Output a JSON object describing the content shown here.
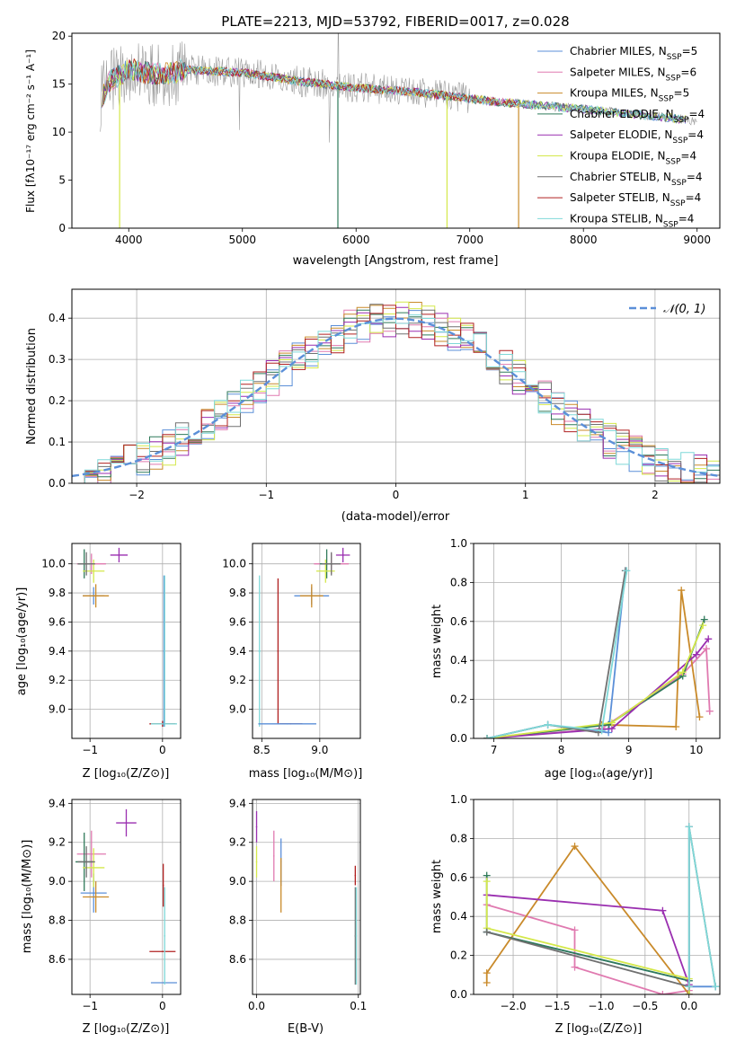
{
  "colors": {
    "chabrier_miles": "#5b8fd8",
    "salpeter_miles": "#e07ab0",
    "kroupa_miles": "#c98a2a",
    "chabrier_elodie": "#2f7a5a",
    "salpeter_elodie": "#9a2fb0",
    "kroupa_elodie": "#d4e84a",
    "chabrier_stelib": "#707070",
    "salpeter_stelib": "#b02020",
    "kroupa_stelib": "#7fd8d8",
    "gaussian": "#5b8fd8"
  },
  "chart_data": [
    {
      "id": "spectrum",
      "type": "line",
      "title": "PLATE=2213, MJD=53792, FIBERID=0017, z=0.028",
      "xlabel": "wavelength [Angstrom, rest frame]",
      "ylabel": "Flux [fλ10⁻¹⁷ erg cm⁻² s⁻¹ A⁻¹]",
      "xlim": [
        3500,
        9200
      ],
      "ylim": [
        0,
        20.3
      ],
      "xticks": [
        4000,
        5000,
        6000,
        7000,
        8000,
        9000
      ],
      "yticks": [
        0,
        5,
        10,
        15,
        20
      ],
      "grid": false,
      "legend_position": "top-right",
      "legend": [
        {
          "label": "Chabrier MILES, N_SSP=5",
          "color_key": "chabrier_miles"
        },
        {
          "label": "Salpeter MILES, N_SSP=6",
          "color_key": "salpeter_miles"
        },
        {
          "label": "Kroupa MILES, N_SSP=5",
          "color_key": "kroupa_miles"
        },
        {
          "label": "Chabrier ELODIE, N_SSP=4",
          "color_key": "chabrier_elodie"
        },
        {
          "label": "Salpeter ELODIE, N_SSP=4",
          "color_key": "salpeter_elodie"
        },
        {
          "label": "Kroupa ELODIE, N_SSP=4",
          "color_key": "kroupa_elodie"
        },
        {
          "label": "Chabrier STELIB, N_SSP=4",
          "color_key": "chabrier_stelib"
        },
        {
          "label": "Salpeter STELIB, N_SSP=4",
          "color_key": "salpeter_stelib"
        },
        {
          "label": "Kroupa STELIB, N_SSP=4",
          "color_key": "kroupa_stelib"
        }
      ],
      "continuum": [
        [
          3750,
          13.5
        ],
        [
          3850,
          15.5
        ],
        [
          4000,
          16.5
        ],
        [
          4300,
          16.0
        ],
        [
          4500,
          16.5
        ],
        [
          5000,
          16.2
        ],
        [
          5500,
          15.3
        ],
        [
          6000,
          14.6
        ],
        [
          6500,
          14.2
        ],
        [
          7000,
          13.5
        ],
        [
          7200,
          13.2
        ],
        [
          7500,
          12.9
        ],
        [
          8000,
          12.4
        ],
        [
          8500,
          11.8
        ],
        [
          9000,
          11.2
        ]
      ],
      "drops": [
        {
          "x": 3920,
          "y": 0,
          "series": "kroupa_elodie"
        },
        {
          "x": 5840,
          "y": 0,
          "series": "chabrier_elodie"
        },
        {
          "x": 6800,
          "y": 0,
          "series": "kroupa_elodie"
        },
        {
          "x": 7430,
          "y": 0,
          "series": "kroupa_miles"
        }
      ]
    },
    {
      "id": "residuals",
      "type": "histogram",
      "xlabel": "(data-model)/error",
      "ylabel": "Normed distribution",
      "xlim": [
        -2.5,
        2.5
      ],
      "ylim": [
        0,
        0.47
      ],
      "xticks": [
        -2,
        -1,
        0,
        1,
        2
      ],
      "yticks": [
        0.0,
        0.1,
        0.2,
        0.3,
        0.4
      ],
      "grid": true,
      "legend_position": "top-right",
      "gaussian_label": "𝒩(0, 1)",
      "bin_width": 0.1,
      "series_count": 9
    },
    {
      "id": "age-vs-Z",
      "type": "scatter",
      "xlabel": "Z [log₁₀(Z/Z⊙)]",
      "ylabel": "age  [log₁₀(age/yr)]",
      "xlim": [
        -1.25,
        0.25
      ],
      "ylim": [
        8.8,
        10.14
      ],
      "xticks": [
        -1,
        0
      ],
      "yticks": [
        9.0,
        9.2,
        9.4,
        9.6,
        9.8,
        10.0
      ],
      "grid": true,
      "points": [
        {
          "series": "chabrier_miles",
          "x": -0.95,
          "y": 9.78,
          "xerr": 0.15,
          "yerr": 0.06
        },
        {
          "series": "salpeter_miles",
          "x": -0.98,
          "y": 10.0,
          "xerr": 0.2,
          "yerr": 0.07
        },
        {
          "series": "kroupa_miles",
          "x": -0.92,
          "y": 9.78,
          "xerr": 0.18,
          "yerr": 0.08
        },
        {
          "series": "chabrier_elodie",
          "x": -1.08,
          "y": 10.0,
          "xerr": 0.08,
          "yerr": 0.1
        },
        {
          "series": "salpeter_elodie",
          "x": -0.6,
          "y": 10.06,
          "xerr": 0.12,
          "yerr": 0.05
        },
        {
          "series": "kroupa_elodie",
          "x": -0.95,
          "y": 9.95,
          "xerr": 0.15,
          "yerr": 0.08
        },
        {
          "series": "chabrier_stelib",
          "x": -1.05,
          "y": 10.0,
          "xerr": 0.12,
          "yerr": 0.08
        },
        {
          "series": "salpeter_stelib",
          "x": 0.0,
          "y": 8.9,
          "xerr": 0.18,
          "yerr": 0.02
        },
        {
          "series": "kroupa_stelib",
          "x": 0.02,
          "y": 8.9,
          "xerr": 0.18,
          "yerr": 0.02
        },
        {
          "series": "chabrier_miles",
          "x": 0.02,
          "y": 9.4,
          "xerr": 0.01,
          "yerr": 0.52
        },
        {
          "series": "kroupa_stelib",
          "x": 0.03,
          "y": 9.4,
          "xerr": 0.01,
          "yerr": 0.52
        }
      ]
    },
    {
      "id": "age-vs-mass",
      "type": "scatter",
      "xlabel": "mass [log₁₀(M/M⊙)]",
      "ylabel": "",
      "xlim": [
        8.42,
        9.35
      ],
      "ylim": [
        8.8,
        10.14
      ],
      "xticks": [
        8.5,
        9.0
      ],
      "yticks": [
        9.0,
        9.2,
        9.4,
        9.6,
        9.8,
        10.0
      ],
      "grid": true,
      "points": [
        {
          "series": "chabrier_miles",
          "x": 8.93,
          "y": 9.78,
          "xerr": 0.15,
          "yerr": 0.06
        },
        {
          "series": "salpeter_miles",
          "x": 9.1,
          "y": 10.0,
          "xerr": 0.15,
          "yerr": 0.07
        },
        {
          "series": "kroupa_miles",
          "x": 8.93,
          "y": 9.78,
          "xerr": 0.1,
          "yerr": 0.08
        },
        {
          "series": "chabrier_elodie",
          "x": 9.06,
          "y": 10.0,
          "xerr": 0.06,
          "yerr": 0.1
        },
        {
          "series": "salpeter_elodie",
          "x": 9.2,
          "y": 10.06,
          "xerr": 0.06,
          "yerr": 0.05
        },
        {
          "series": "kroupa_elodie",
          "x": 9.05,
          "y": 9.95,
          "xerr": 0.08,
          "yerr": 0.08
        },
        {
          "series": "chabrier_stelib",
          "x": 9.1,
          "y": 10.0,
          "xerr": 0.08,
          "yerr": 0.08
        },
        {
          "series": "salpeter_stelib",
          "x": 8.64,
          "y": 9.4,
          "xerr": 0.0,
          "yerr": 0.5
        },
        {
          "series": "salpeter_stelib",
          "x": 8.75,
          "y": 8.9,
          "xerr": 0.1,
          "yerr": 0.0
        },
        {
          "series": "kroupa_stelib",
          "x": 8.48,
          "y": 9.4,
          "xerr": 0.01,
          "yerr": 0.52
        },
        {
          "series": "chabrier_miles",
          "x": 8.72,
          "y": 8.9,
          "xerr": 0.25,
          "yerr": 0.0
        }
      ]
    },
    {
      "id": "weight-vs-age",
      "type": "line",
      "xlabel": "age  [log₁₀(age/yr)]",
      "ylabel": "mass weight",
      "xlim": [
        6.7,
        10.35
      ],
      "ylim": [
        0,
        1.0
      ],
      "xticks": [
        7,
        8,
        9,
        10
      ],
      "yticks": [
        0.0,
        0.2,
        0.4,
        0.6,
        0.8,
        1.0
      ],
      "grid": true,
      "series": [
        {
          "key": "chabrier_miles",
          "x": [
            6.9,
            7.8,
            8.7,
            8.95
          ],
          "y": [
            0.0,
            0.07,
            0.03,
            0.86
          ]
        },
        {
          "key": "salpeter_miles",
          "x": [
            6.9,
            8.6,
            9.8,
            10.15,
            10.2,
            10.2
          ],
          "y": [
            0.0,
            0.05,
            0.33,
            0.46,
            0.14,
            0.14
          ]
        },
        {
          "key": "kroupa_miles",
          "x": [
            6.9,
            8.6,
            9.7,
            9.78,
            10.05
          ],
          "y": [
            0.0,
            0.07,
            0.06,
            0.76,
            0.11
          ]
        },
        {
          "key": "chabrier_elodie",
          "x": [
            6.9,
            8.7,
            9.8,
            10.12
          ],
          "y": [
            0.0,
            0.07,
            0.32,
            0.61
          ]
        },
        {
          "key": "salpeter_elodie",
          "x": [
            6.9,
            8.75,
            10.0,
            10.18
          ],
          "y": [
            0.0,
            0.05,
            0.43,
            0.51
          ]
        },
        {
          "key": "kroupa_elodie",
          "x": [
            6.9,
            8.75,
            9.8,
            10.1
          ],
          "y": [
            0.0,
            0.08,
            0.34,
            0.58
          ]
        },
        {
          "key": "chabrier_stelib",
          "x": [
            6.9,
            7.8,
            8.55,
            8.95
          ],
          "y": [
            0.0,
            0.07,
            0.03,
            0.86
          ]
        },
        {
          "key": "kroupa_stelib",
          "x": [
            6.9,
            7.8,
            8.6,
            8.97
          ],
          "y": [
            0.0,
            0.07,
            0.04,
            0.86
          ]
        }
      ]
    },
    {
      "id": "mass-vs-Z",
      "type": "scatter",
      "xlabel": "Z [log₁₀(Z/Z⊙)]",
      "ylabel": "mass [log₁₀(M/M⊙)]",
      "xlim": [
        -1.25,
        0.25
      ],
      "ylim": [
        8.42,
        9.42
      ],
      "xticks": [
        -1,
        0
      ],
      "yticks": [
        8.6,
        8.8,
        9.0,
        9.2,
        9.4
      ],
      "grid": true,
      "points": [
        {
          "series": "chabrier_miles",
          "x": -0.95,
          "y": 8.94,
          "xerr": 0.18,
          "yerr": 0.1
        },
        {
          "series": "salpeter_miles",
          "x": -0.98,
          "y": 9.14,
          "xerr": 0.2,
          "yerr": 0.12
        },
        {
          "series": "kroupa_miles",
          "x": -0.92,
          "y": 8.92,
          "xerr": 0.18,
          "yerr": 0.08
        },
        {
          "series": "chabrier_elodie",
          "x": -1.08,
          "y": 9.1,
          "xerr": 0.12,
          "yerr": 0.15
        },
        {
          "series": "salpeter_elodie",
          "x": -0.5,
          "y": 9.3,
          "xerr": 0.14,
          "yerr": 0.07
        },
        {
          "series": "kroupa_elodie",
          "x": -0.95,
          "y": 9.07,
          "xerr": 0.15,
          "yerr": 0.1
        },
        {
          "series": "chabrier_stelib",
          "x": -1.05,
          "y": 9.1,
          "xerr": 0.12,
          "yerr": 0.08
        },
        {
          "series": "salpeter_stelib",
          "x": 0.0,
          "y": 8.64,
          "xerr": 0.18,
          "yerr": 0.0
        },
        {
          "series": "salpeter_stelib",
          "x": 0.01,
          "y": 8.98,
          "xerr": 0.0,
          "yerr": 0.11
        },
        {
          "series": "chabrier_miles",
          "x": 0.02,
          "y": 8.48,
          "xerr": 0.18,
          "yerr": 0.0
        },
        {
          "series": "kroupa_stelib",
          "x": 0.03,
          "y": 8.72,
          "xerr": 0.01,
          "yerr": 0.25
        }
      ]
    },
    {
      "id": "mass-vs-ebv",
      "type": "scatter",
      "xlabel": "E(B-V)",
      "ylabel": "",
      "xlim": [
        -0.004,
        0.102
      ],
      "ylim": [
        8.42,
        9.42
      ],
      "xticks": [
        0.0,
        0.1
      ],
      "yticks": [
        8.6,
        8.8,
        9.0,
        9.2,
        9.4
      ],
      "grid": true,
      "points": [
        {
          "series": "salpeter_elodie",
          "x": 0.0,
          "y": 9.28,
          "xerr": 0,
          "yerr": 0.08
        },
        {
          "series": "kroupa_elodie",
          "x": 0.0,
          "y": 9.1,
          "xerr": 0,
          "yerr": 0.08
        },
        {
          "series": "salpeter_miles",
          "x": 0.017,
          "y": 9.13,
          "xerr": 0,
          "yerr": 0.13
        },
        {
          "series": "chabrier_miles",
          "x": 0.024,
          "y": 9.1,
          "xerr": 0,
          "yerr": 0.12
        },
        {
          "series": "kroupa_miles",
          "x": 0.024,
          "y": 8.98,
          "xerr": 0,
          "yerr": 0.14
        },
        {
          "series": "salpeter_stelib",
          "x": 0.097,
          "y": 9.03,
          "xerr": 0,
          "yerr": 0.05
        },
        {
          "series": "chabrier_stelib",
          "x": 0.097,
          "y": 8.72,
          "xerr": 0,
          "yerr": 0.25
        },
        {
          "series": "kroupa_stelib",
          "x": 0.098,
          "y": 8.72,
          "xerr": 0,
          "yerr": 0.25
        }
      ]
    },
    {
      "id": "weight-vs-Z",
      "type": "line",
      "xlabel": "Z [log₁₀(Z/Z⊙)]",
      "ylabel": "mass weight",
      "xlim": [
        -2.45,
        0.35
      ],
      "ylim": [
        0,
        1.0
      ],
      "xticks": [
        -2.0,
        -1.5,
        -1.0,
        -0.5,
        0.0
      ],
      "yticks": [
        0.0,
        0.2,
        0.4,
        0.6,
        0.8,
        1.0
      ],
      "grid": true,
      "series": [
        {
          "key": "chabrier_miles",
          "x": [
            -2.3,
            -0.0,
            0.0,
            0.0,
            0.3
          ],
          "y": [
            0.32,
            0.07,
            0.86,
            0.04,
            0.04
          ]
        },
        {
          "key": "salpeter_miles",
          "x": [
            -2.3,
            -1.3,
            -1.3,
            -0.3,
            0.0,
            0.0
          ],
          "y": [
            0.46,
            0.33,
            0.14,
            0.0,
            0.02,
            0.04
          ]
        },
        {
          "key": "kroupa_miles",
          "x": [
            -2.3,
            -2.3,
            -1.3,
            0.0,
            0.0
          ],
          "y": [
            0.06,
            0.11,
            0.76,
            0.0,
            0.0
          ]
        },
        {
          "key": "chabrier_elodie",
          "x": [
            -2.3,
            -2.3,
            0.0,
            0.0
          ],
          "y": [
            0.61,
            0.32,
            0.07,
            0.0
          ]
        },
        {
          "key": "salpeter_elodie",
          "x": [
            -2.3,
            -0.3,
            0.0,
            0.0
          ],
          "y": [
            0.51,
            0.43,
            0.05,
            0.0
          ]
        },
        {
          "key": "kroupa_elodie",
          "x": [
            -2.3,
            -2.3,
            0.0,
            0.0
          ],
          "y": [
            0.58,
            0.34,
            0.08,
            0.0
          ]
        },
        {
          "key": "chabrier_stelib",
          "x": [
            -2.3,
            0.0,
            0.0,
            0.3
          ],
          "y": [
            0.32,
            0.04,
            0.86,
            0.04
          ]
        },
        {
          "key": "kroupa_stelib",
          "x": [
            0.0,
            0.0,
            0.3
          ],
          "y": [
            0.04,
            0.86,
            0.04
          ]
        }
      ]
    }
  ]
}
